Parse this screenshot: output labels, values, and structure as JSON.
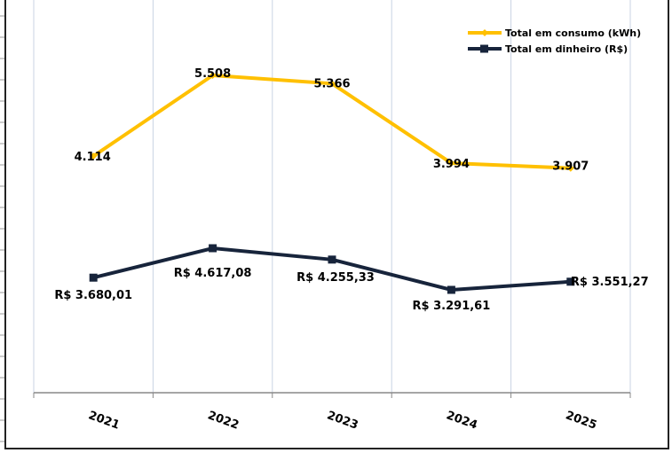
{
  "chart_data": {
    "type": "line",
    "categories": [
      "2021",
      "2022",
      "2023",
      "2024",
      "2025"
    ],
    "series": [
      {
        "name": "Total em consumo (kWh)",
        "values": [
          4114,
          5508,
          5366,
          3994,
          3907
        ],
        "labels": [
          "4.114",
          "5.508",
          "5.366",
          "3.994",
          "3.907"
        ],
        "color": "#FFC000",
        "marker": "diamond"
      },
      {
        "name": "Total em dinheiro (R$)",
        "values": [
          3680.01,
          4617.08,
          4255.33,
          3291.61,
          3551.27
        ],
        "labels": [
          "R$ 3.680,01",
          "R$ 4.617,08",
          "R$ 4.255,33",
          "R$ 3.291,61",
          "R$ 3.551,27"
        ],
        "color": "#17243B",
        "marker": "square"
      }
    ],
    "title": "",
    "xlabel": "",
    "ylabel": "",
    "grid": "vertical",
    "legend": "top-right"
  }
}
